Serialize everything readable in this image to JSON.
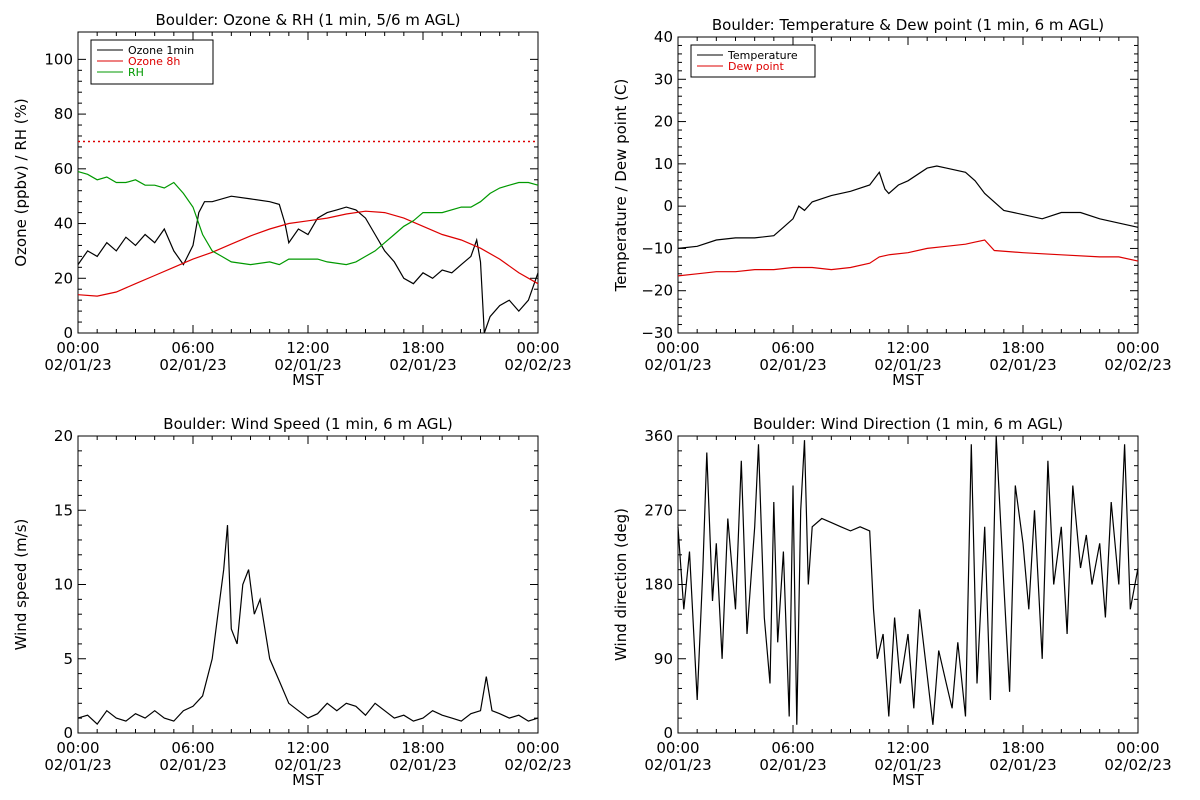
{
  "chart_data": [
    {
      "type": "line",
      "title": "Boulder: Ozone & RH (1 min, 5/6 m AGL)",
      "xlabel": "MST",
      "ylabel": "Ozone (ppbv) / RH (%)",
      "xlim": [
        0,
        24
      ],
      "ylim": [
        0,
        110
      ],
      "y_ticks": [
        0,
        20,
        40,
        60,
        80,
        100
      ],
      "y_tick_labels": [
        "0",
        "20",
        "40",
        "60",
        "80",
        "100"
      ],
      "x_tick_labels": [
        {
          "time": "00:00",
          "date": "02/01/23"
        },
        {
          "time": "06:00",
          "date": "02/01/23"
        },
        {
          "time": "12:00",
          "date": "02/01/23"
        },
        {
          "time": "18:00",
          "date": "02/01/23"
        },
        {
          "time": "00:00",
          "date": "02/02/23"
        }
      ],
      "legend_position": "top-left",
      "series": [
        {
          "name": "Ozone 1min",
          "color": "#000000",
          "x": [
            0,
            0.5,
            1,
            1.5,
            2,
            2.5,
            3,
            3.5,
            4,
            4.5,
            5,
            5.5,
            6,
            6.3,
            6.6,
            7,
            8,
            9,
            10,
            10.5,
            10.8,
            11,
            11.5,
            12,
            12.5,
            13,
            13.5,
            14,
            14.5,
            15,
            15.5,
            16,
            16.5,
            17,
            17.5,
            18,
            18.5,
            19,
            19.5,
            20,
            20.5,
            20.8,
            21,
            21.2,
            21.5,
            22,
            22.5,
            23,
            23.5,
            24
          ],
          "y": [
            25,
            30,
            28,
            33,
            30,
            35,
            32,
            36,
            33,
            38,
            30,
            25,
            32,
            44,
            48,
            48,
            50,
            49,
            48,
            47,
            40,
            33,
            38,
            36,
            42,
            44,
            45,
            46,
            45,
            42,
            36,
            30,
            26,
            20,
            18,
            22,
            20,
            23,
            22,
            25,
            28,
            34,
            26,
            0,
            6,
            10,
            12,
            8,
            12,
            22
          ]
        },
        {
          "name": "Ozone 8h",
          "color": "#dd0000",
          "x": [
            0,
            1,
            2,
            3,
            4,
            5,
            6,
            7,
            8,
            9,
            10,
            11,
            12,
            13,
            14,
            15,
            16,
            17,
            18,
            19,
            20,
            21,
            22,
            23,
            24
          ],
          "y": [
            14,
            13.5,
            15,
            18,
            21,
            24,
            27,
            29.5,
            32.5,
            35.5,
            38,
            40,
            41,
            42,
            43.5,
            44.5,
            44,
            42,
            39,
            36,
            34,
            31,
            27,
            22,
            18
          ]
        },
        {
          "name": "RH",
          "color": "#009900",
          "x": [
            0,
            0.5,
            1,
            1.5,
            2,
            2.5,
            3,
            3.5,
            4,
            4.5,
            5,
            5.5,
            6,
            6.5,
            7,
            7.5,
            8,
            9,
            10,
            10.5,
            11,
            12,
            12.5,
            13,
            14,
            14.5,
            15,
            15.5,
            16,
            16.5,
            17,
            17.5,
            18,
            19,
            20,
            20.5,
            21,
            21.5,
            22,
            22.5,
            23,
            23.5,
            24
          ],
          "y": [
            59,
            58,
            56,
            57,
            55,
            55,
            56,
            54,
            54,
            53,
            55,
            51,
            46,
            36,
            30,
            28,
            26,
            25,
            26,
            25,
            27,
            27,
            27,
            26,
            25,
            26,
            28,
            30,
            33,
            36,
            39,
            41,
            44,
            44,
            46,
            46,
            48,
            51,
            53,
            54,
            55,
            55,
            54
          ]
        }
      ],
      "reference_lines": [
        {
          "y": 70,
          "color": "#dd0000",
          "style": "dotted"
        }
      ]
    },
    {
      "type": "line",
      "title": "Boulder: Temperature & Dew point (1 min, 6 m AGL)",
      "xlabel": "MST",
      "ylabel": "Temperature / Dew point (C)",
      "xlim": [
        0,
        24
      ],
      "ylim": [
        -30,
        40
      ],
      "y_ticks": [
        -30,
        -20,
        -10,
        0,
        10,
        20,
        30,
        40
      ],
      "y_tick_labels": [
        "−30",
        "−20",
        "−10",
        "0",
        "10",
        "20",
        "30",
        "40"
      ],
      "x_tick_labels": [
        {
          "time": "00:00",
          "date": "02/01/23"
        },
        {
          "time": "06:00",
          "date": "02/01/23"
        },
        {
          "time": "12:00",
          "date": "02/01/23"
        },
        {
          "time": "18:00",
          "date": "02/01/23"
        },
        {
          "time": "00:00",
          "date": "02/02/23"
        }
      ],
      "legend_position": "top-left",
      "series": [
        {
          "name": "Temperature",
          "color": "#000000",
          "x": [
            0,
            1,
            2,
            3,
            4,
            5,
            5.5,
            6,
            6.3,
            6.6,
            7,
            8,
            9,
            10,
            10.5,
            10.8,
            11,
            11.5,
            12,
            13,
            13.5,
            14,
            15,
            15.5,
            16,
            17,
            18,
            19,
            20,
            21,
            22,
            23,
            24
          ],
          "y": [
            -10,
            -9.5,
            -8,
            -7.5,
            -7.5,
            -7,
            -5,
            -3,
            0,
            -1,
            1,
            2.5,
            3.5,
            5,
            8,
            4,
            3,
            5,
            6,
            9,
            9.5,
            9,
            8,
            6,
            3,
            -1,
            -2,
            -3,
            -1.5,
            -1.5,
            -3,
            -4,
            -5
          ]
        },
        {
          "name": "Dew point",
          "color": "#dd0000",
          "x": [
            0,
            1,
            2,
            3,
            4,
            5,
            6,
            7,
            8,
            9,
            10,
            10.5,
            11,
            12,
            13,
            14,
            15,
            15.5,
            16,
            16.5,
            18,
            20,
            22,
            23,
            24
          ],
          "y": [
            -16.5,
            -16,
            -15.5,
            -15.5,
            -15,
            -15,
            -14.5,
            -14.5,
            -15,
            -14.5,
            -13.5,
            -12,
            -11.5,
            -11,
            -10,
            -9.5,
            -9,
            -8.5,
            -8,
            -10.5,
            -11,
            -11.5,
            -12,
            -12,
            -13
          ]
        }
      ]
    },
    {
      "type": "line",
      "title": "Boulder: Wind Speed (1 min, 6 m AGL)",
      "xlabel": "MST",
      "ylabel": "Wind speed (m/s)",
      "xlim": [
        0,
        24
      ],
      "ylim": [
        0,
        20
      ],
      "y_ticks": [
        0,
        5,
        10,
        15,
        20
      ],
      "y_tick_labels": [
        "0",
        "5",
        "10",
        "15",
        "20"
      ],
      "x_tick_labels": [
        {
          "time": "00:00",
          "date": "02/01/23"
        },
        {
          "time": "06:00",
          "date": "02/01/23"
        },
        {
          "time": "12:00",
          "date": "02/01/23"
        },
        {
          "time": "18:00",
          "date": "02/01/23"
        },
        {
          "time": "00:00",
          "date": "02/02/23"
        }
      ],
      "series": [
        {
          "name": "",
          "color": "#000000",
          "x": [
            0,
            0.5,
            1,
            1.5,
            2,
            2.5,
            3,
            3.5,
            4,
            4.5,
            5,
            5.5,
            6,
            6.5,
            7,
            7.3,
            7.6,
            7.8,
            8,
            8.3,
            8.6,
            8.9,
            9.2,
            9.5,
            10,
            10.5,
            11,
            11.5,
            12,
            12.5,
            13,
            13.5,
            14,
            14.5,
            15,
            15.5,
            16,
            16.5,
            17,
            17.5,
            18,
            18.5,
            19,
            19.5,
            20,
            20.5,
            21,
            21.3,
            21.6,
            22,
            22.5,
            23,
            23.5,
            24
          ],
          "y": [
            1,
            1.2,
            0.6,
            1.5,
            1,
            0.8,
            1.3,
            1,
            1.5,
            1,
            0.8,
            1.5,
            1.8,
            2.5,
            5,
            8,
            11,
            14,
            7,
            6,
            10,
            11,
            8,
            9,
            5,
            3.5,
            2,
            1.5,
            1,
            1.3,
            2,
            1.5,
            2,
            1.8,
            1.2,
            2,
            1.5,
            1,
            1.2,
            0.8,
            1,
            1.5,
            1.2,
            1,
            0.8,
            1.3,
            1.5,
            3.8,
            1.5,
            1.3,
            1,
            1.2,
            0.8,
            1
          ]
        }
      ]
    },
    {
      "type": "line",
      "title": "Boulder: Wind Direction (1 min, 6 m AGL)",
      "xlabel": "MST",
      "ylabel": "Wind direction (deg)",
      "xlim": [
        0,
        24
      ],
      "ylim": [
        0,
        360
      ],
      "y_ticks": [
        0,
        90,
        180,
        270,
        360
      ],
      "y_tick_labels": [
        "0",
        "90",
        "180",
        "270",
        "360"
      ],
      "x_tick_labels": [
        {
          "time": "00:00",
          "date": "02/01/23"
        },
        {
          "time": "06:00",
          "date": "02/01/23"
        },
        {
          "time": "12:00",
          "date": "02/01/23"
        },
        {
          "time": "18:00",
          "date": "02/01/23"
        },
        {
          "time": "00:00",
          "date": "02/02/23"
        }
      ],
      "series": [
        {
          "name": "",
          "color": "#000000",
          "x": [
            0,
            0.3,
            0.6,
            1,
            1.3,
            1.5,
            1.8,
            2,
            2.3,
            2.6,
            3,
            3.3,
            3.6,
            4,
            4.2,
            4.5,
            4.8,
            5,
            5.2,
            5.5,
            5.8,
            6,
            6.2,
            6.4,
            6.6,
            6.8,
            7,
            7.5,
            8,
            8.5,
            9,
            9.5,
            10,
            10.2,
            10.4,
            10.7,
            11,
            11.3,
            11.6,
            12,
            12.3,
            12.6,
            13,
            13.3,
            13.6,
            14,
            14.3,
            14.6,
            15,
            15.3,
            15.6,
            16,
            16.3,
            16.6,
            17,
            17.3,
            17.6,
            18,
            18.3,
            18.6,
            19,
            19.3,
            19.6,
            20,
            20.3,
            20.6,
            21,
            21.3,
            21.6,
            22,
            22.3,
            22.6,
            23,
            23.3,
            23.6,
            24
          ],
          "y": [
            250,
            150,
            220,
            40,
            200,
            340,
            160,
            230,
            90,
            260,
            150,
            330,
            120,
            250,
            350,
            140,
            60,
            280,
            110,
            220,
            20,
            300,
            10,
            270,
            355,
            180,
            250,
            260,
            255,
            250,
            245,
            250,
            245,
            150,
            90,
            120,
            20,
            140,
            60,
            120,
            30,
            150,
            70,
            10,
            100,
            60,
            30,
            110,
            20,
            350,
            60,
            250,
            40,
            360,
            180,
            50,
            300,
            230,
            150,
            270,
            90,
            330,
            180,
            250,
            120,
            300,
            200,
            240,
            180,
            230,
            140,
            280,
            180,
            350,
            150,
            200
          ]
        }
      ]
    }
  ]
}
